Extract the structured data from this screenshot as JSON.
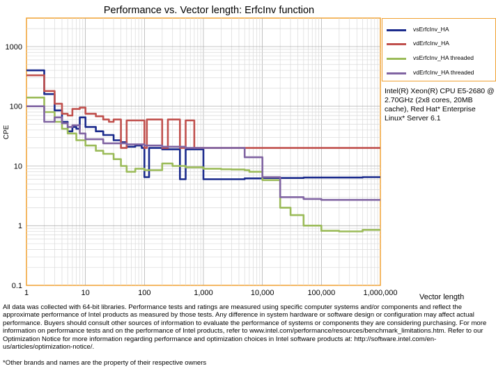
{
  "chart_data": {
    "type": "line",
    "title": "Performance vs. Vector length: ErfcInv function",
    "xlabel": "Vector length",
    "ylabel": "CPE",
    "xscale": "log",
    "yscale": "log",
    "xlim": [
      1,
      1000000
    ],
    "ylim": [
      0.1,
      3000
    ],
    "x_tick_values": [
      1,
      10,
      100,
      1000,
      10000,
      100000,
      1000000
    ],
    "x_tick_labels": [
      "1",
      "10",
      "100",
      "1,000",
      "10,000",
      "100,000",
      "1,000,000"
    ],
    "y_tick_values": [
      0.1,
      1,
      10,
      100,
      1000
    ],
    "y_tick_labels": [
      "0.1",
      "1",
      "10",
      "100",
      "1000"
    ],
    "grid": true,
    "legend_position": "right",
    "series": [
      {
        "name": "vsErfcInv_HA",
        "color": "#1a2a8c",
        "points": [
          [
            1,
            400
          ],
          [
            2,
            160
          ],
          [
            3,
            85
          ],
          [
            4,
            55
          ],
          [
            5,
            38
          ],
          [
            6,
            45
          ],
          [
            7,
            42
          ],
          [
            8,
            65
          ],
          [
            10,
            45
          ],
          [
            15,
            38
          ],
          [
            20,
            33
          ],
          [
            30,
            27
          ],
          [
            40,
            25
          ],
          [
            50,
            21
          ],
          [
            70,
            22
          ],
          [
            90,
            20
          ],
          [
            100,
            6.5
          ],
          [
            120,
            20
          ],
          [
            200,
            19
          ],
          [
            300,
            19
          ],
          [
            400,
            6
          ],
          [
            500,
            19
          ],
          [
            700,
            19
          ],
          [
            900,
            19
          ],
          [
            1000,
            6
          ],
          [
            1200,
            6
          ],
          [
            2000,
            6
          ],
          [
            5000,
            6.2
          ],
          [
            10000,
            6.3
          ],
          [
            50000,
            6.4
          ],
          [
            100000,
            6.4
          ],
          [
            500000,
            6.5
          ],
          [
            1000000,
            6.5
          ]
        ]
      },
      {
        "name": "vdErfcInv_HA",
        "color": "#c0504d",
        "points": [
          [
            1,
            330
          ],
          [
            2,
            180
          ],
          [
            3,
            110
          ],
          [
            4,
            75
          ],
          [
            5,
            70
          ],
          [
            6,
            90
          ],
          [
            8,
            95
          ],
          [
            10,
            75
          ],
          [
            15,
            68
          ],
          [
            20,
            60
          ],
          [
            25,
            55
          ],
          [
            30,
            60
          ],
          [
            40,
            20
          ],
          [
            50,
            58
          ],
          [
            70,
            58
          ],
          [
            100,
            20
          ],
          [
            110,
            60
          ],
          [
            200,
            20
          ],
          [
            250,
            60
          ],
          [
            300,
            60
          ],
          [
            400,
            20
          ],
          [
            500,
            58
          ],
          [
            700,
            20
          ],
          [
            1000,
            20
          ],
          [
            5000,
            20
          ],
          [
            10000,
            20
          ],
          [
            100000,
            20
          ],
          [
            1000000,
            20
          ]
        ]
      },
      {
        "name": "vsErfcInv_HA threaded",
        "color": "#9bbb59",
        "points": [
          [
            1,
            140
          ],
          [
            2,
            80
          ],
          [
            3,
            55
          ],
          [
            4,
            42
          ],
          [
            5,
            35
          ],
          [
            7,
            27
          ],
          [
            10,
            22
          ],
          [
            15,
            18
          ],
          [
            20,
            16
          ],
          [
            30,
            13
          ],
          [
            40,
            10
          ],
          [
            50,
            8
          ],
          [
            70,
            9
          ],
          [
            100,
            8.5
          ],
          [
            200,
            11
          ],
          [
            300,
            10
          ],
          [
            500,
            9.5
          ],
          [
            1000,
            9
          ],
          [
            2000,
            8.8
          ],
          [
            3000,
            8.7
          ],
          [
            5000,
            8.5
          ],
          [
            6000,
            8
          ],
          [
            10000,
            5.8
          ],
          [
            20000,
            2
          ],
          [
            30000,
            1.5
          ],
          [
            50000,
            1
          ],
          [
            100000,
            0.82
          ],
          [
            200000,
            0.8
          ],
          [
            500000,
            0.85
          ],
          [
            1000000,
            0.85
          ]
        ]
      },
      {
        "name": "vdErfcInv_HA threaded",
        "color": "#8064a2",
        "points": [
          [
            1,
            100
          ],
          [
            2,
            55
          ],
          [
            3,
            65
          ],
          [
            4,
            52
          ],
          [
            5,
            45
          ],
          [
            6,
            48
          ],
          [
            8,
            35
          ],
          [
            10,
            28
          ],
          [
            20,
            24
          ],
          [
            50,
            23
          ],
          [
            100,
            22
          ],
          [
            200,
            21
          ],
          [
            500,
            20
          ],
          [
            1000,
            20
          ],
          [
            3000,
            20
          ],
          [
            5000,
            14
          ],
          [
            10000,
            6.5
          ],
          [
            20000,
            3
          ],
          [
            50000,
            2.8
          ],
          [
            100000,
            2.7
          ],
          [
            500000,
            2.7
          ],
          [
            1000000,
            2.7
          ]
        ]
      }
    ]
  },
  "annotation": "Intel(R) Xeon(R) CPU E5-2680 @ 2.70GHz (2x8 cores, 20MB cache), Red Hat* Enterprise Linux* Server 6.1",
  "footer": {
    "disclaimer": "All data was collected with 64-bit libraries. Performance tests and ratings are measured using specific computer systems and/or components and reflect the approximate performance of Intel products as measured by those tests. Any difference in system hardware or software design or configuration may affect actual performance. Buyers should consult other sources of information to evaluate the performance of systems or components they are considering purchasing. For more information on performance tests and on the performance of Intel products, refer to www.intel.com/performance/resources/benchmark_limitations.htm. Refer to our Optimization Notice for more information regarding performance and optimization choices in Intel software products at: http://software.intel.com/en-us/articles/optimization-notice/.",
    "trademark": "*Other brands and names are the property of their respective owners"
  }
}
